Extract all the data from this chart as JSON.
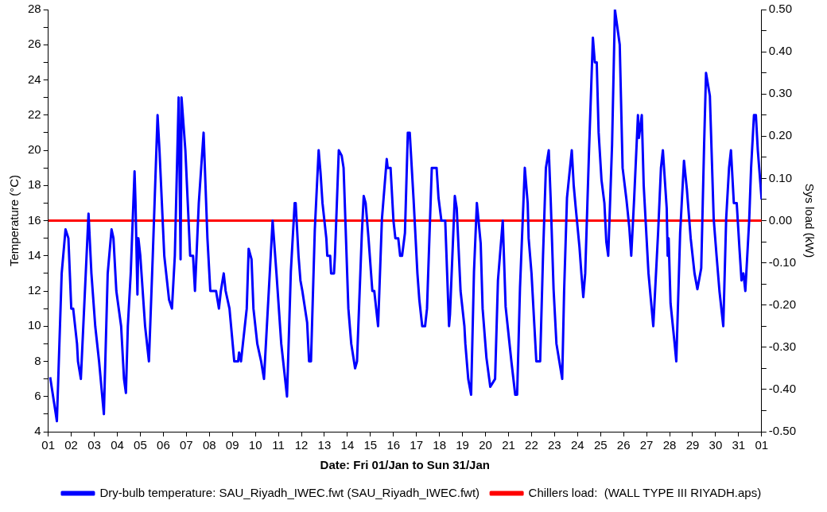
{
  "chart_data": {
    "type": "line",
    "xlabel": "Date: Fri 01/Jan to Sun 31/Jan",
    "ylabel": "Temperature (°C)",
    "y2label": "Sys load (kW)",
    "xlim": [
      "--01-01",
      "--02-01"
    ],
    "xticks": [
      {
        "value": "--01-01",
        "label": "01"
      },
      {
        "value": "--01-02",
        "label": "02"
      },
      {
        "value": "--01-03",
        "label": "03"
      },
      {
        "value": "--01-04",
        "label": "04"
      },
      {
        "value": "--01-05",
        "label": "05"
      },
      {
        "value": "--01-06",
        "label": "06"
      },
      {
        "value": "--01-07",
        "label": "07"
      },
      {
        "value": "--01-08",
        "label": "08"
      },
      {
        "value": "--01-09",
        "label": "09"
      },
      {
        "value": "--01-10",
        "label": "10"
      },
      {
        "value": "--01-11",
        "label": "11"
      },
      {
        "value": "--01-12",
        "label": "12"
      },
      {
        "value": "--01-13",
        "label": "13"
      },
      {
        "value": "--01-14",
        "label": "14"
      },
      {
        "value": "--01-15",
        "label": "15"
      },
      {
        "value": "--01-16",
        "label": "16"
      },
      {
        "value": "--01-17",
        "label": "17"
      },
      {
        "value": "--01-18",
        "label": "18"
      },
      {
        "value": "--01-19",
        "label": "19"
      },
      {
        "value": "--01-20",
        "label": "20"
      },
      {
        "value": "--01-21",
        "label": "21"
      },
      {
        "value": "--01-22",
        "label": "22"
      },
      {
        "value": "--01-23",
        "label": "23"
      },
      {
        "value": "--01-24",
        "label": "24"
      },
      {
        "value": "--01-25",
        "label": "25"
      },
      {
        "value": "--01-26",
        "label": "26"
      },
      {
        "value": "--01-27",
        "label": "27"
      },
      {
        "value": "--01-28",
        "label": "28"
      },
      {
        "value": "--01-29",
        "label": "29"
      },
      {
        "value": "--01-30",
        "label": "30"
      },
      {
        "value": "--01-31",
        "label": "31"
      },
      {
        "value": "--02-01",
        "label": "01"
      }
    ],
    "ylim": [
      4,
      28
    ],
    "yticks": [
      4,
      {
        "value": 5,
        "label": null
      },
      6,
      {
        "value": 7,
        "label": null
      },
      8,
      {
        "value": 9,
        "label": null
      },
      10,
      {
        "value": 11,
        "label": null
      },
      12,
      {
        "value": 13,
        "label": null
      },
      14,
      {
        "value": 15,
        "label": null
      },
      16,
      {
        "value": 17,
        "label": null
      },
      18,
      {
        "value": 19,
        "label": null
      },
      20,
      {
        "value": 21,
        "label": null
      },
      22,
      {
        "value": 23,
        "label": null
      },
      24,
      {
        "value": 25,
        "label": null
      },
      26,
      {
        "value": 27,
        "label": null
      },
      28
    ],
    "y2lim": [
      -0.5,
      0.5
    ],
    "y2ticks": [
      {
        "value": -0.5,
        "label": "-0.50"
      },
      {
        "value": -0.45,
        "label": null
      },
      {
        "value": -0.4,
        "label": "-0.40"
      },
      {
        "value": -0.35,
        "label": null
      },
      {
        "value": -0.3,
        "label": "-0.30"
      },
      {
        "value": -0.25,
        "label": null
      },
      {
        "value": -0.2,
        "label": "-0.20"
      },
      {
        "value": -0.15,
        "label": null
      },
      {
        "value": -0.1,
        "label": "-0.10"
      },
      {
        "value": -0.05,
        "label": null
      },
      {
        "value": 0,
        "label": "0.00"
      },
      {
        "value": 0.05,
        "label": null
      },
      {
        "value": 0.1,
        "label": "0.10"
      },
      {
        "value": 0.15,
        "label": null
      },
      {
        "value": 0.2,
        "label": "0.20"
      },
      {
        "value": 0.25,
        "label": null
      },
      {
        "value": 0.3,
        "label": "0.30"
      },
      {
        "value": 0.35,
        "label": null
      },
      {
        "value": 0.4,
        "label": "0.40"
      },
      {
        "value": 0.45,
        "label": null
      },
      {
        "value": 0.5,
        "label": "0.50"
      }
    ],
    "grid": false,
    "legend": "bottom",
    "marker": "none",
    "line_style": "solid",
    "series": [
      {
        "name": "Dry-bulb temperature: SAU_Riyadh_IWEC.fwt (SAU_Riyadh_IWEC.fwt)",
        "color": "#0000ff",
        "x": [
          "--01-01T02:00",
          "--01-01T09:00",
          "--01-01T14:00",
          "--01-01T18:00",
          "--01-01T21:00",
          "--01-02T00:00",
          "--01-02T02:00",
          "--01-02T06:00",
          "--01-02T07:00",
          "--01-02T10:00",
          "--01-02T18:00",
          "--01-02T21:00",
          "--01-03T01:00",
          "--01-03T05:00",
          "--01-03T10:00",
          "--01-03T14:00",
          "--01-03T18:00",
          "--01-03T20:00",
          "--01-03T23:00",
          "--01-04T04:00",
          "--01-04T07:00",
          "--01-04T09:00",
          "--01-04T11:00",
          "--01-04T14:00",
          "--01-04T18:00",
          "--01-04T19:00",
          "--01-04T21:00",
          "--01-04T22:00",
          "--01-05T00:00",
          "--01-05T05:00",
          "--01-05T09:00",
          "--01-05T13:00",
          "--01-05T18:00",
          "--01-05T20:00",
          "--01-06T01:00",
          "--01-06T06:00",
          "--01-06T09:00",
          "--01-06T12:00",
          "--01-06T16:00",
          "--01-06T18:00",
          "--01-06T19:00",
          "--01-06T23:00",
          "--01-07T04:00",
          "--01-07T07:00",
          "--01-07T09:00",
          "--01-07T13:00",
          "--01-07T18:00",
          "--01-07T22:00",
          "--01-08T01:00",
          "--01-08T07:00",
          "--01-08T10:00",
          "--01-08T12:00",
          "--01-08T15:00",
          "--01-08T17:00",
          "--01-08T21:00",
          "--01-09T02:00",
          "--01-09T06:00",
          "--01-09T07:00",
          "--01-09T09:00",
          "--01-09T15:00",
          "--01-09T17:00",
          "--01-09T20:00",
          "--01-09T22:00",
          "--01-10T02:00",
          "--01-10T06:00",
          "--01-10T09:00",
          "--01-10T12:00",
          "--01-10T16:00",
          "--01-10T18:00",
          "--01-10T22:00",
          "--01-11T03:00",
          "--01-11T09:00",
          "--01-11T13:00",
          "--01-11T17:00",
          "--01-11T18:00",
          "--01-11T21:00",
          "--01-11T23:00",
          "--01-12T01:00",
          "--01-12T06:00",
          "--01-12T08:00",
          "--01-12T10:00",
          "--01-12T14:00",
          "--01-12T18:00",
          "--01-12T20:00",
          "--01-12T22:00",
          "--01-13T02:00",
          "--01-13T03:00",
          "--01-13T06:00",
          "--01-13T07:00",
          "--01-13T10:00",
          "--01-13T11:00",
          "--01-13T15:00",
          "--01-13T18:00",
          "--01-13T20:00",
          "--01-14T01:00",
          "--01-14T04:00",
          "--01-14T08:00",
          "--01-14T10:00",
          "--01-14T15:00",
          "--01-14T17:00",
          "--01-14T19:00",
          "--01-14T22:00",
          "--01-15T02:00",
          "--01-15T04:00",
          "--01-15T06:00",
          "--01-15T08:00",
          "--01-15T12:00",
          "--01-15T17:00",
          "--01-15T18:00",
          "--01-15T21:00",
          "--01-15T22:00",
          "--01-16T00:00",
          "--01-16T02:00",
          "--01-16T05:00",
          "--01-16T07:00",
          "--01-16T09:00",
          "--01-16T12:00",
          "--01-16T15:00",
          "--01-16T17:00",
          "--01-16T21:00",
          "--01-17T01:00",
          "--01-17T03:00",
          "--01-17T06:00",
          "--01-17T09:00",
          "--01-17T11:00",
          "--01-17T16:00",
          "--01-17T21:00",
          "--01-17T23:00",
          "--01-18T02:00",
          "--01-18T06:00",
          "--01-18T10:00",
          "--01-18T11:00",
          "--01-18T16:00",
          "--01-18T18:00",
          "--01-18T22:00",
          "--01-19T02:00",
          "--01-19T03:00",
          "--01-19T06:00",
          "--01-19T09:00",
          "--01-19T12:00",
          "--01-19T15:00",
          "--01-19T19:00",
          "--01-19T21:00",
          "--01-20T01:00",
          "--01-20T05:00",
          "--01-20T10:00",
          "--01-20T13:00",
          "--01-20T18:00",
          "--01-20T21:00",
          "--01-21T03:00",
          "--01-21T07:00",
          "--01-21T09:00",
          "--01-21T12:00",
          "--01-21T17:00",
          "--01-21T20:00",
          "--01-21T21:00",
          "--01-22T00:00",
          "--01-22T03:00",
          "--01-22T05:00",
          "--01-22T09:00",
          "--01-22T12:00",
          "--01-22T15:00",
          "--01-22T18:00",
          "--01-22T20:00",
          "--01-22T23:00",
          "--01-23T02:00",
          "--01-23T05:00",
          "--01-23T08:00",
          "--01-23T10:00",
          "--01-23T13:00",
          "--01-23T18:00",
          "--01-23T20:00",
          "--01-23T22:00",
          "--01-24T02:00",
          "--01-24T04:00",
          "--01-24T06:00",
          "--01-24T08:00",
          "--01-24T12:00",
          "--01-24T16:00",
          "--01-24T18:00",
          "--01-24T20:00",
          "--01-24T22:00",
          "--01-25T01:00",
          "--01-25T04:00",
          "--01-25T06:00",
          "--01-25T08:00",
          "--01-25T12:00",
          "--01-25T15:00",
          "--01-25T20:00",
          "--01-25T23:00",
          "--01-26T03:00",
          "--01-26T06:00",
          "--01-26T08:00",
          "--01-26T11:00",
          "--01-26T15:00",
          "--01-26T16:00",
          "--01-26T19:00",
          "--01-26T21:00",
          "--01-27T02:00",
          "--01-27T05:00",
          "--01-27T07:00",
          "--01-27T12:00",
          "--01-27T15:00",
          "--01-27T17:00",
          "--01-27T21:00",
          "--01-27T22:00",
          "--01-27T23:00",
          "--01-28T01:00",
          "--01-28T05:00",
          "--01-28T07:00",
          "--01-28T11:00",
          "--01-28T15:00",
          "--01-28T18:00",
          "--01-28T22:00",
          "--01-29T02:00",
          "--01-29T05:00",
          "--01-29T09:00",
          "--01-29T12:00",
          "--01-29T14:00",
          "--01-29T18:00",
          "--01-29T22:00",
          "--01-30T01:00",
          "--01-30T04:00",
          "--01-30T08:00",
          "--01-30T11:00",
          "--01-30T14:00",
          "--01-30T16:00",
          "--01-30T19:00",
          "--01-30T22:00",
          "--01-31T01:00",
          "--01-31T03:00",
          "--01-31T05:00",
          "--01-31T07:00",
          "--01-31T11:00",
          "--01-31T13:00",
          "--01-31T16:00",
          "--01-31T18:00",
          "--01-31T20:00",
          "--02-01T00:00"
        ],
        "values": [
          7.1,
          4.6,
          13,
          15.5,
          15,
          11,
          11,
          9,
          8,
          7,
          16.4,
          13,
          10,
          8,
          5,
          13,
          15.5,
          15,
          12,
          10,
          7,
          6.2,
          10,
          13,
          18.8,
          17,
          11.8,
          15,
          14,
          10,
          8,
          14,
          22,
          20,
          14,
          11.5,
          11,
          14,
          23,
          13.8,
          23,
          20,
          14,
          14,
          12,
          17,
          21,
          15,
          12,
          12,
          11,
          12,
          13,
          12,
          11,
          8,
          8,
          8.5,
          8,
          11,
          14.4,
          13.8,
          11,
          9,
          8,
          7,
          10,
          14,
          16,
          13,
          9,
          6,
          13.1,
          17,
          17,
          14,
          12.6,
          12,
          10.2,
          8,
          8,
          15.5,
          20,
          18.7,
          17,
          15,
          14,
          14,
          13,
          13,
          14,
          20,
          19.7,
          19,
          11,
          9,
          7.6,
          8,
          15.2,
          17.4,
          17,
          15,
          12,
          12,
          11,
          10,
          16.1,
          19.5,
          19,
          19,
          18,
          16,
          15,
          15,
          14,
          14,
          15.3,
          21,
          21,
          17.2,
          13,
          11.5,
          10,
          10,
          11,
          19,
          19,
          17.3,
          16,
          16,
          10,
          10.7,
          17.4,
          16.7,
          12,
          10,
          9,
          7,
          6.1,
          13.1,
          17,
          14.7,
          11,
          8.2,
          6.55,
          7,
          12.6,
          16,
          11.1,
          8,
          6.1,
          6.1,
          12.2,
          19,
          17,
          15,
          13,
          10,
          8,
          8,
          14,
          19,
          20,
          17.2,
          12.1,
          9,
          8,
          7,
          12,
          17.3,
          20,
          18,
          16.8,
          14.5,
          13,
          11.65,
          13,
          20,
          26.4,
          25,
          25,
          21,
          18.3,
          17,
          14.8,
          14,
          20.3,
          28,
          26,
          19,
          17.2,
          15.6,
          14,
          17.2,
          22,
          20.7,
          22,
          18,
          13,
          11.2,
          10,
          15.3,
          19,
          20,
          16.7,
          14,
          15,
          11.3,
          9.15,
          8,
          15.3,
          19.4,
          17.8,
          15,
          13,
          12.1,
          13.3,
          20.3,
          24.4,
          23.1,
          16.1,
          14,
          12,
          10,
          16.1,
          19,
          20,
          17,
          17,
          14.3,
          12.6,
          13,
          12,
          16,
          19,
          22,
          22,
          20,
          17.2
        ]
      },
      {
        "name": "Chillers load:  (WALL TYPE III RIYADH.aps)",
        "color": "#ff0000",
        "axis": "y2",
        "x": [
          "--01-01",
          "--02-01"
        ],
        "values": [
          0,
          0
        ]
      }
    ]
  }
}
